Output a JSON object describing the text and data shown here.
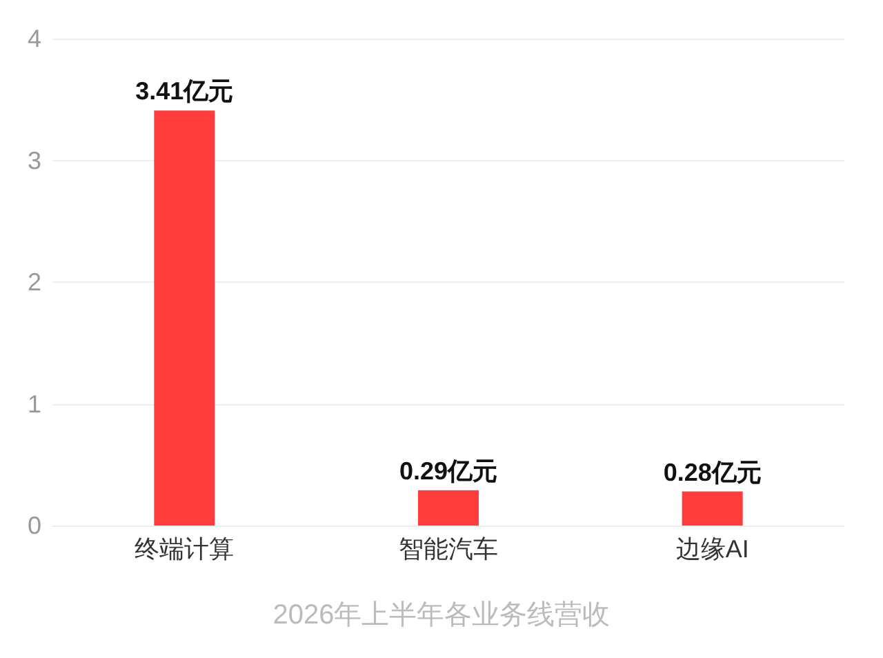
{
  "chart_data": {
    "type": "bar",
    "title": "2026年上半年各业务线营收",
    "categories": [
      "终端计算",
      "智能汽车",
      "边缘AI"
    ],
    "values": [
      3.41,
      0.29,
      0.28
    ],
    "value_labels": [
      "3.41亿元",
      "0.29亿元",
      "0.28亿元"
    ],
    "color": "#ff3d3d",
    "ylim": [
      0,
      4
    ],
    "yticks": [
      0,
      1,
      2,
      3,
      4
    ],
    "grid": "y"
  }
}
